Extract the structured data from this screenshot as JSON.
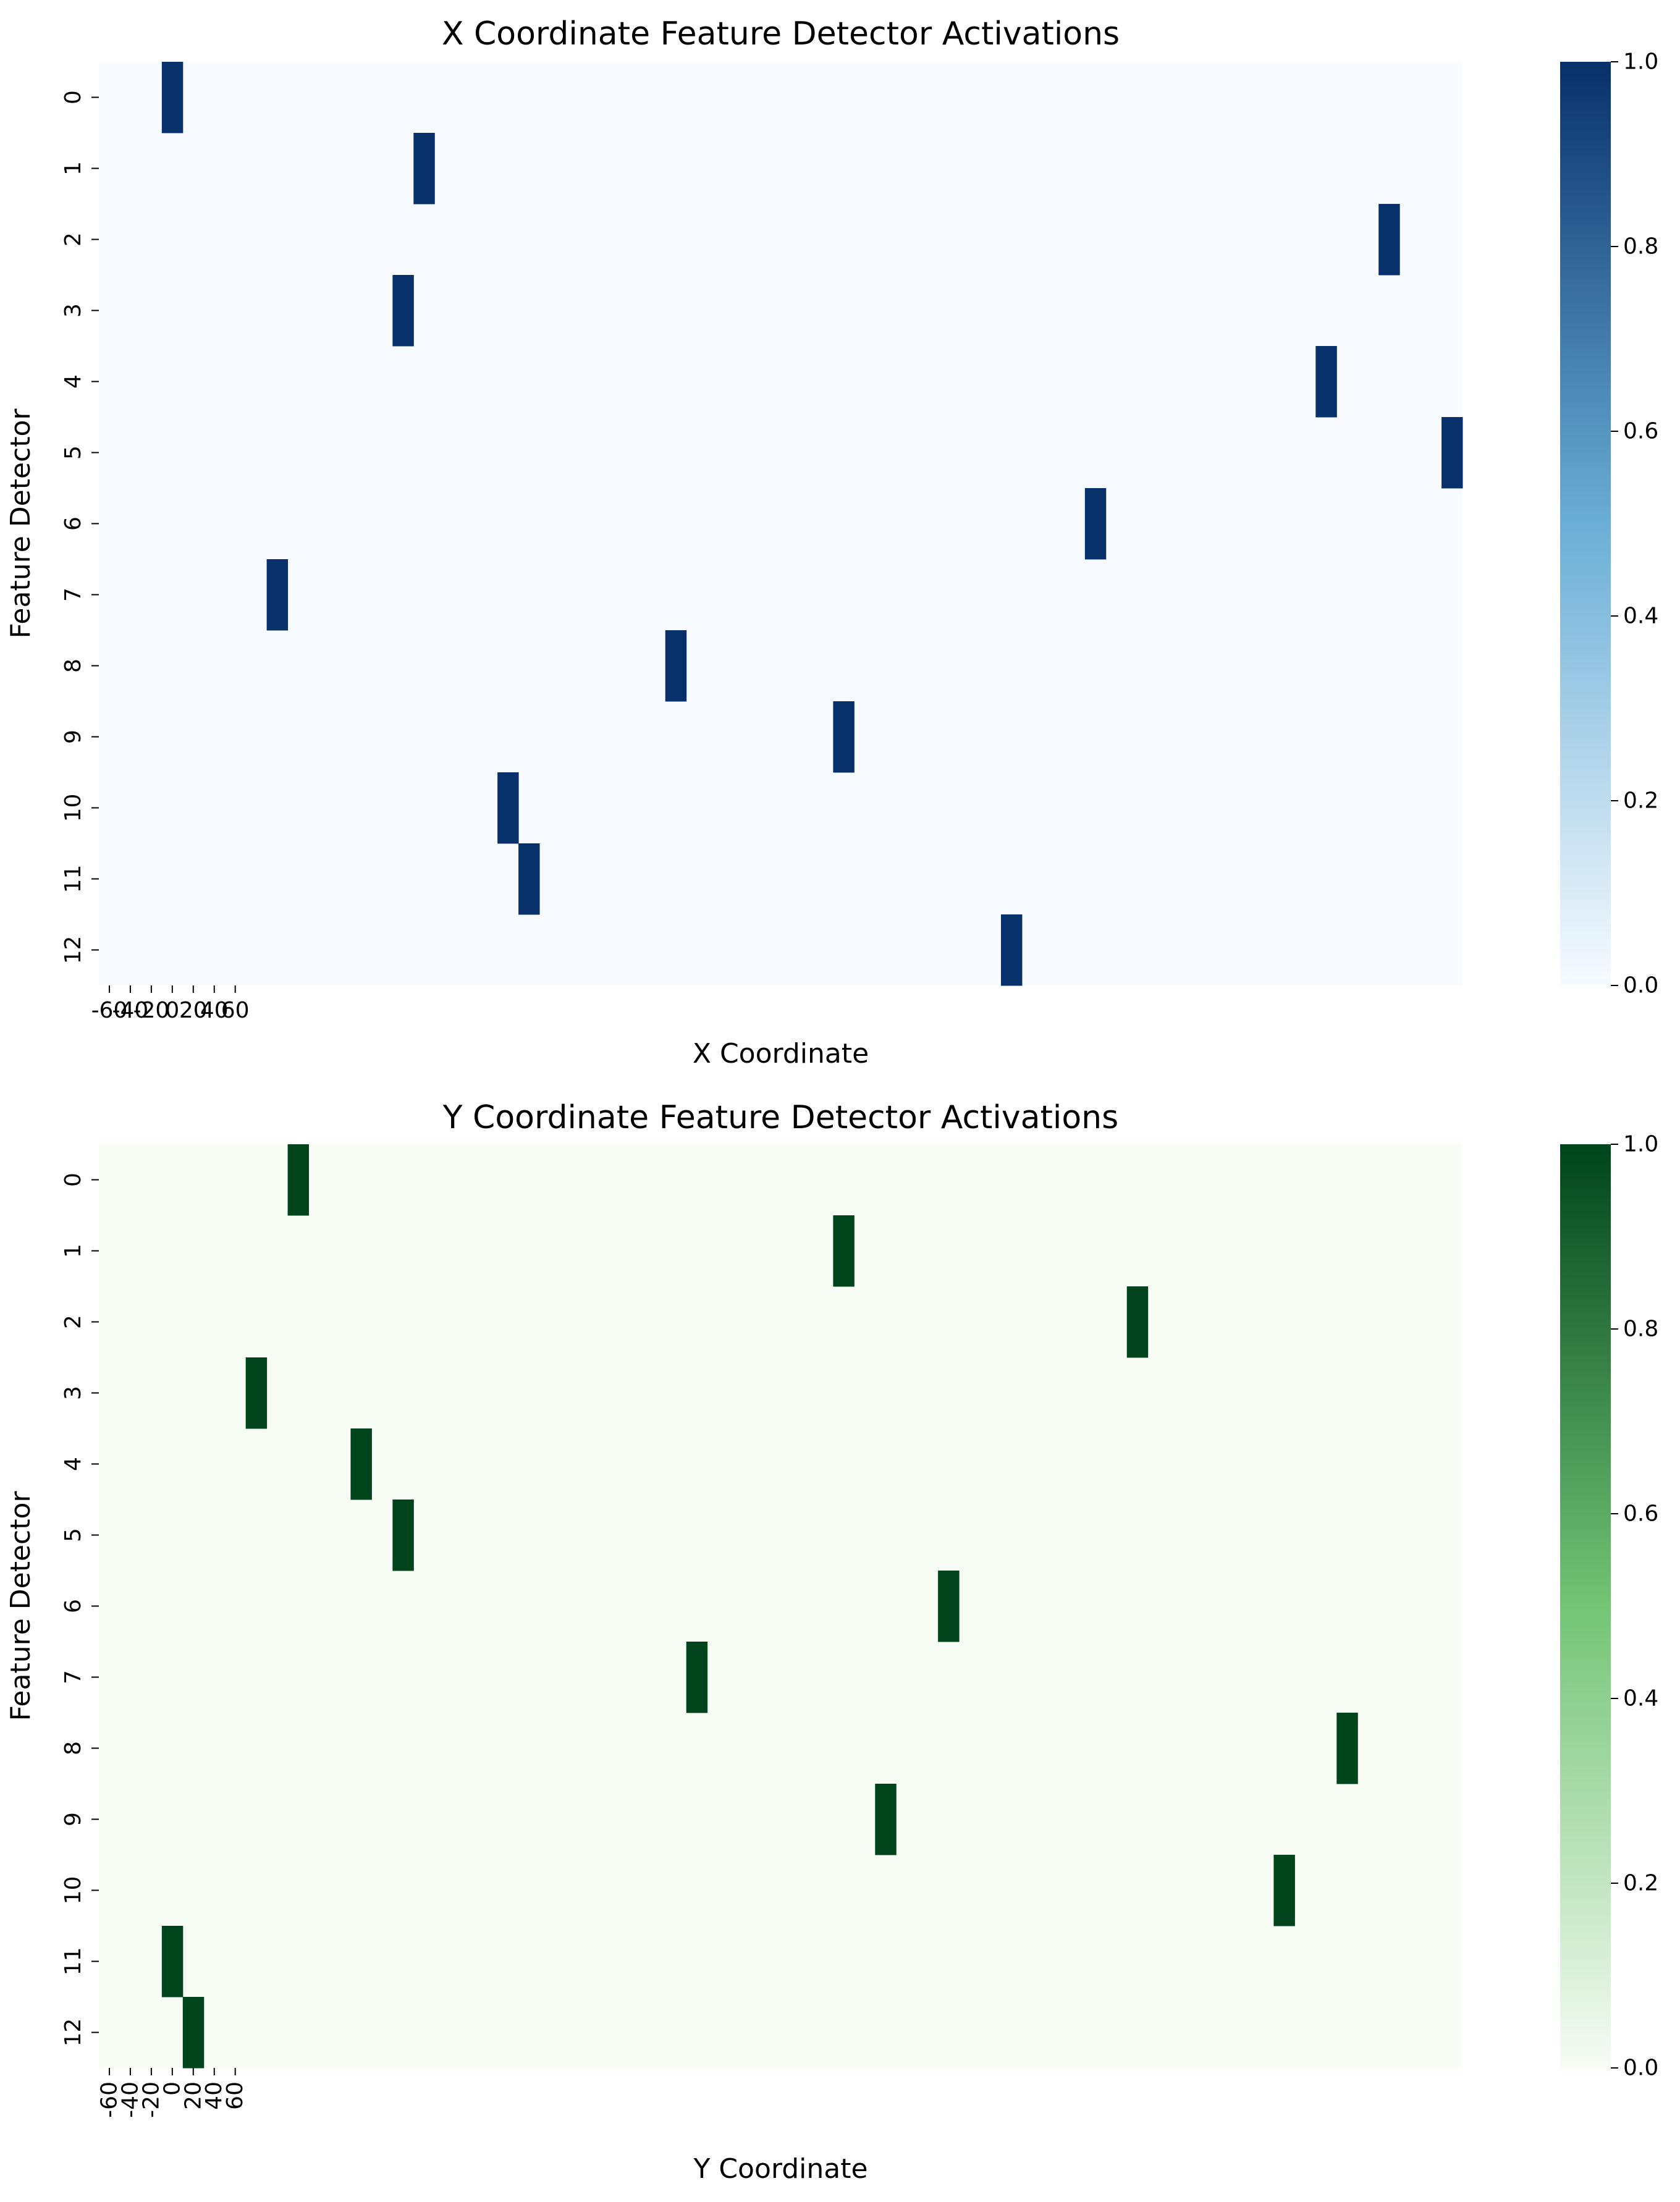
{
  "chart_data": [
    {
      "type": "heatmap",
      "title": "X Coordinate Feature Detector Activations",
      "xlabel": "X Coordinate",
      "ylabel": "Feature Detector",
      "colormap": "Blues",
      "colors": {
        "low": "#f7fbff",
        "mid": "#6baed6",
        "high": "#08306b"
      },
      "n_columns": 65,
      "rows": [
        "0",
        "1",
        "2",
        "3",
        "4",
        "5",
        "6",
        "7",
        "8",
        "9",
        "10",
        "11",
        "12"
      ],
      "xtick_labels": [
        "-60",
        "-40",
        "-20",
        "0",
        "20",
        "40",
        "60"
      ],
      "xtick_rotation": 0,
      "active_columns": [
        3,
        15,
        61,
        14,
        58,
        64,
        47,
        8,
        27,
        35,
        19,
        20,
        43
      ],
      "value_range": [
        0,
        1
      ],
      "colorbar_ticks": [
        "0.0",
        "0.2",
        "0.4",
        "0.6",
        "0.8",
        "1.0"
      ]
    },
    {
      "type": "heatmap",
      "title": "Y Coordinate Feature Detector Activations",
      "xlabel": "Y Coordinate",
      "ylabel": "Feature Detector",
      "colormap": "Greens",
      "colors": {
        "low": "#f7fcf5",
        "mid": "#74c476",
        "high": "#00441b"
      },
      "n_columns": 65,
      "rows": [
        "0",
        "1",
        "2",
        "3",
        "4",
        "5",
        "6",
        "7",
        "8",
        "9",
        "10",
        "11",
        "12"
      ],
      "xtick_labels": [
        "-60",
        "-40",
        "-20",
        "0",
        "20",
        "40",
        "60"
      ],
      "xtick_rotation": 90,
      "active_columns": [
        9,
        35,
        49,
        7,
        12,
        14,
        40,
        28,
        59,
        37,
        56,
        3,
        4
      ],
      "value_range": [
        0,
        1
      ],
      "colorbar_ticks": [
        "0.0",
        "0.2",
        "0.4",
        "0.6",
        "0.8",
        "1.0"
      ]
    }
  ]
}
